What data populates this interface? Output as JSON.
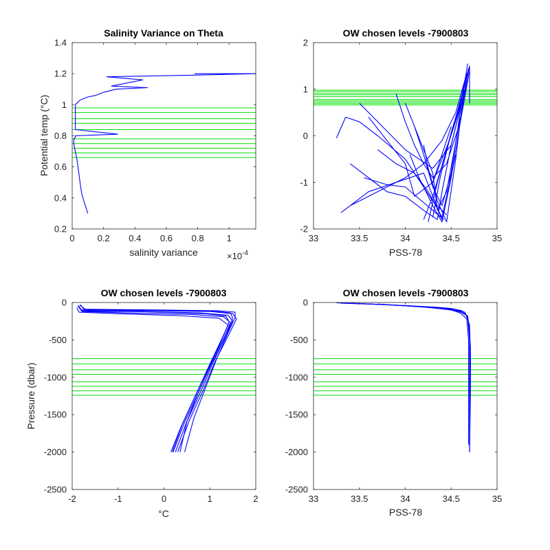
{
  "chart_data": [
    {
      "type": "line",
      "title": "Salinity Variance on Theta",
      "xlabel": "salinity variance",
      "x_exponent_label": "×10",
      "x_exponent_power": "-4",
      "ylabel": "Potential temp (°C)",
      "xlim": [
        0,
        1.17
      ],
      "ylim": [
        0.2,
        1.4
      ],
      "xticks": [
        0,
        0.2,
        0.4,
        0.6,
        0.8,
        1
      ],
      "xtick_labels": [
        "0",
        "0.2",
        "0.4",
        "0.6",
        "0.8",
        "1"
      ],
      "yticks": [
        0.2,
        0.4,
        0.6,
        0.8,
        1.0,
        1.2,
        1.4
      ],
      "ytick_labels": [
        "0.2",
        "0.4",
        "0.6",
        "0.8",
        "1",
        "1.2",
        "1.4"
      ],
      "series": [
        {
          "color": "#0000ff",
          "x": [
            0.1,
            0.08,
            0.06,
            0.05,
            0.04,
            0.03,
            0.02,
            0.01,
            0.01,
            0.02,
            0.02,
            0.29,
            0.02,
            0.02,
            0.02,
            0.02,
            0.05,
            0.1,
            0.15,
            0.2,
            0.28,
            0.48,
            0.25,
            0.45,
            0.22,
            0.75,
            1.17,
            0.78
          ],
          "y": [
            0.3,
            0.36,
            0.43,
            0.5,
            0.58,
            0.65,
            0.7,
            0.75,
            0.78,
            0.79,
            0.8,
            0.81,
            0.84,
            0.88,
            0.95,
            1.0,
            1.03,
            1.05,
            1.06,
            1.08,
            1.1,
            1.11,
            1.12,
            1.16,
            1.18,
            1.19,
            1.2,
            1.2
          ]
        }
      ],
      "reference_lines": {
        "color": "#00e000",
        "orientation": "horizontal",
        "values": [
          0.66,
          0.69,
          0.72,
          0.75,
          0.78,
          0.84,
          0.88,
          0.91,
          0.95,
          0.98
        ]
      }
    },
    {
      "type": "line",
      "title": "OW chosen levels -7900803",
      "xlabel": "PSS-78",
      "ylabel": "",
      "xlim": [
        33,
        35
      ],
      "ylim": [
        -2,
        2
      ],
      "xticks": [
        33,
        33.5,
        34,
        34.5,
        35
      ],
      "xtick_labels": [
        "33",
        "33.5",
        "34",
        "34.5",
        "35"
      ],
      "yticks": [
        -2,
        -1,
        0,
        1,
        2
      ],
      "ytick_labels": [
        "-2",
        "-1",
        "0",
        "1",
        "2"
      ],
      "series": [
        {
          "color": "#0000ff",
          "x": [
            34.35,
            34.4,
            34.5,
            34.6,
            34.65,
            34.68,
            34.7,
            34.7
          ],
          "y": [
            -1.8,
            -1.2,
            -0.2,
            0.6,
            1.0,
            1.3,
            1.5,
            0.7
          ]
        },
        {
          "color": "#0000ff",
          "x": [
            34.25,
            34.35,
            34.45,
            34.55,
            34.62,
            34.66,
            34.68
          ],
          "y": [
            -1.85,
            -1.0,
            -0.3,
            0.4,
            0.9,
            1.3,
            1.55
          ]
        },
        {
          "color": "#0000ff",
          "x": [
            34.2,
            34.3,
            34.42,
            34.52,
            34.6,
            34.65,
            34.69
          ],
          "y": [
            -1.8,
            -1.3,
            -0.5,
            0.2,
            0.7,
            1.1,
            1.45
          ]
        },
        {
          "color": "#0000ff",
          "x": [
            34.3,
            34.38,
            34.48,
            34.58,
            34.63,
            34.67
          ],
          "y": [
            -1.75,
            -0.9,
            -0.1,
            0.5,
            0.95,
            1.35
          ]
        },
        {
          "color": "#0000ff",
          "x": [
            33.4,
            33.7,
            34.0,
            34.2,
            34.4,
            34.55,
            34.65
          ],
          "y": [
            -1.5,
            -1.2,
            -0.9,
            -0.6,
            -0.1,
            0.5,
            1.2
          ]
        },
        {
          "color": "#0000ff",
          "x": [
            33.3,
            33.6,
            33.9,
            34.2,
            34.4
          ],
          "y": [
            -1.65,
            -1.2,
            -1.0,
            -0.8,
            -1.8
          ]
        },
        {
          "color": "#0000ff",
          "x": [
            33.5,
            33.7,
            34.0,
            34.3,
            34.5,
            34.6
          ],
          "y": [
            0.7,
            0.3,
            -0.3,
            -0.7,
            -0.2,
            0.6
          ]
        },
        {
          "color": "#0000ff",
          "x": [
            33.6,
            33.8,
            34.0,
            34.1,
            34.3,
            34.5
          ],
          "y": [
            0.4,
            -0.1,
            -0.6,
            -1.3,
            -1.0,
            0.2
          ]
        },
        {
          "color": "#0000ff",
          "x": [
            33.25,
            33.35,
            33.5,
            33.7,
            34.0,
            34.3,
            34.45
          ],
          "y": [
            -0.05,
            0.4,
            0.3,
            0.0,
            -0.5,
            -1.4,
            -1.7
          ]
        },
        {
          "color": "#0000ff",
          "x": [
            33.4,
            33.6,
            33.8,
            34.0,
            34.2,
            34.35
          ],
          "y": [
            -0.6,
            -0.9,
            -1.2,
            -1.3,
            -1.6,
            -1.8
          ]
        },
        {
          "color": "#0000ff",
          "x": [
            33.9,
            34.0,
            34.1,
            34.2,
            34.3,
            34.45,
            34.6,
            34.66
          ],
          "y": [
            0.9,
            0.3,
            -0.2,
            -0.6,
            -0.9,
            -0.6,
            0.3,
            1.1
          ]
        },
        {
          "color": "#0000ff",
          "x": [
            34.0,
            34.1,
            34.2,
            34.3,
            34.4,
            34.5,
            34.62
          ],
          "y": [
            0.7,
            0.2,
            -0.4,
            -1.1,
            -1.5,
            -0.8,
            0.8
          ]
        },
        {
          "color": "#0000ff",
          "x": [
            34.1,
            34.2,
            34.3,
            34.35,
            34.45,
            34.6
          ],
          "y": [
            0.2,
            -0.3,
            -0.8,
            -1.6,
            -1.2,
            0.4
          ]
        },
        {
          "color": "#0000ff",
          "x": [
            33.7,
            33.9,
            34.1,
            34.25,
            34.4,
            34.55
          ],
          "y": [
            -0.3,
            -0.6,
            -0.8,
            -1.2,
            -1.75,
            -0.4
          ]
        },
        {
          "color": "#0000ff",
          "x": [
            34.2,
            34.25,
            34.35,
            34.45,
            34.55,
            34.64
          ],
          "y": [
            -0.2,
            -0.7,
            -1.4,
            -1.85,
            -0.5,
            1.0
          ]
        },
        {
          "color": "#0000ff",
          "x": [
            34.05,
            34.15,
            34.3,
            34.4,
            34.5,
            34.6,
            34.7
          ],
          "y": [
            -0.4,
            -0.9,
            -1.5,
            -1.85,
            -0.9,
            0.3,
            1.4
          ]
        },
        {
          "color": "#0000ff",
          "x": [
            33.55,
            33.8,
            34.0,
            34.15,
            34.3,
            34.42
          ],
          "y": [
            -0.9,
            -1.05,
            -1.1,
            -1.35,
            -1.6,
            -1.8
          ]
        },
        {
          "color": "#0000ff",
          "x": [
            34.3,
            34.38,
            34.48,
            34.56,
            34.64,
            34.68
          ],
          "y": [
            -1.0,
            -0.6,
            -0.1,
            0.4,
            0.85,
            1.2
          ]
        }
      ],
      "reference_lines": {
        "color": "#00e000",
        "orientation": "horizontal",
        "values": [
          0.66,
          0.69,
          0.72,
          0.75,
          0.78,
          0.84,
          0.88,
          0.91,
          0.95,
          0.98
        ]
      }
    },
    {
      "type": "line",
      "title": "OW chosen levels -7900803",
      "xlabel": "°C",
      "ylabel": "Pressure (dbar)",
      "xlim": [
        -2,
        2
      ],
      "ylim": [
        -2500,
        0
      ],
      "xticks": [
        -2,
        -1,
        0,
        1,
        2
      ],
      "xtick_labels": [
        "-2",
        "-1",
        "0",
        "1",
        "2"
      ],
      "yticks": [
        -2500,
        -2000,
        -1500,
        -1000,
        -500,
        0
      ],
      "ytick_labels": [
        "-2500",
        "-2000",
        "-1500",
        "-1000",
        "-500",
        "0"
      ],
      "series": [
        {
          "color": "#0000ff",
          "x": [
            -1.85,
            -1.8,
            -0.5,
            0.8,
            1.4,
            1.5,
            1.35,
            1.05,
            0.75,
            0.45,
            0.2
          ],
          "y": [
            -50,
            -110,
            -120,
            -140,
            -170,
            -250,
            -450,
            -800,
            -1200,
            -1600,
            -2000
          ]
        },
        {
          "color": "#0000ff",
          "x": [
            -1.88,
            -1.8,
            -0.2,
            1.0,
            1.5,
            1.58,
            1.42,
            1.12,
            0.85,
            0.55,
            0.3
          ],
          "y": [
            -40,
            -100,
            -110,
            -120,
            -150,
            -220,
            -420,
            -780,
            -1180,
            -1580,
            -2000
          ]
        },
        {
          "color": "#0000ff",
          "x": [
            -1.82,
            -1.75,
            0.0,
            1.2,
            1.55,
            1.55,
            1.4,
            1.15,
            0.9,
            0.65,
            0.45
          ],
          "y": [
            -30,
            -90,
            -100,
            -110,
            -130,
            -200,
            -400,
            -750,
            -1150,
            -1550,
            -2000
          ]
        },
        {
          "color": "#0000ff",
          "x": [
            -1.86,
            -1.78,
            -0.8,
            0.6,
            1.3,
            1.45,
            1.3,
            1.0,
            0.7,
            0.4,
            0.18
          ],
          "y": [
            -60,
            -120,
            -140,
            -160,
            -190,
            -270,
            -480,
            -830,
            -1230,
            -1630,
            -2000
          ]
        },
        {
          "color": "#0000ff",
          "x": [
            -1.9,
            -1.85,
            -1.0,
            0.3,
            1.2,
            1.4,
            1.25,
            0.98,
            0.68,
            0.38,
            0.15
          ],
          "y": [
            -70,
            -130,
            -150,
            -175,
            -210,
            -300,
            -500,
            -850,
            -1250,
            -1650,
            -2000
          ]
        },
        {
          "color": "#0000ff",
          "x": [
            -1.84,
            -1.7,
            0.2,
            1.1,
            1.45,
            1.5,
            1.36,
            1.08,
            0.8,
            0.5,
            0.35
          ],
          "y": [
            -35,
            -95,
            -105,
            -115,
            -140,
            -210,
            -430,
            -790,
            -1190,
            -1590,
            -2000
          ]
        },
        {
          "color": "#0000ff",
          "x": [
            -1.87,
            -1.76,
            -0.4,
            0.9,
            1.35,
            1.42,
            1.28,
            1.02,
            0.74,
            0.48,
            0.25
          ],
          "y": [
            -55,
            -115,
            -125,
            -150,
            -180,
            -260,
            -470,
            -820,
            -1220,
            -1620,
            -2000
          ]
        }
      ],
      "reference_lines": {
        "color": "#00e000",
        "orientation": "horizontal",
        "values": [
          -750,
          -820,
          -900,
          -960,
          -1060,
          -1120,
          -1180,
          -1240
        ]
      }
    },
    {
      "type": "line",
      "title": "OW chosen levels -7900803",
      "xlabel": "PSS-78",
      "ylabel": "",
      "xlim": [
        33,
        35
      ],
      "ylim": [
        -2500,
        0
      ],
      "xticks": [
        33,
        33.5,
        34,
        34.5,
        35
      ],
      "xtick_labels": [
        "33",
        "33.5",
        "34",
        "34.5",
        "35"
      ],
      "yticks": [
        -2500,
        -2000,
        -1500,
        -1000,
        -500,
        0
      ],
      "ytick_labels": [
        "-2500",
        "-2000",
        "-1500",
        "-1000",
        "-500",
        "0"
      ],
      "series": [
        {
          "color": "#0000ff",
          "x": [
            33.25,
            33.6,
            34.0,
            34.3,
            34.5,
            34.62,
            34.68,
            34.7,
            34.7,
            34.7
          ],
          "y": [
            -5,
            -20,
            -40,
            -60,
            -80,
            -110,
            -200,
            -500,
            -1000,
            -2000
          ]
        },
        {
          "color": "#0000ff",
          "x": [
            33.3,
            33.7,
            34.1,
            34.35,
            34.55,
            34.65,
            34.69,
            34.71,
            34.71,
            34.7
          ],
          "y": [
            -10,
            -25,
            -50,
            -70,
            -95,
            -130,
            -250,
            -600,
            -1200,
            -2000
          ]
        },
        {
          "color": "#0000ff",
          "x": [
            33.5,
            33.9,
            34.2,
            34.4,
            34.58,
            34.66,
            34.7,
            34.71,
            34.7
          ],
          "y": [
            -15,
            -35,
            -60,
            -85,
            -110,
            -160,
            -300,
            -800,
            -2000
          ]
        },
        {
          "color": "#0000ff",
          "x": [
            33.7,
            34.0,
            34.3,
            34.5,
            34.6,
            34.67,
            34.69,
            34.69
          ],
          "y": [
            -20,
            -45,
            -70,
            -100,
            -140,
            -220,
            -500,
            -1900
          ]
        },
        {
          "color": "#0000ff",
          "x": [
            33.4,
            33.8,
            34.15,
            34.45,
            34.6,
            34.68,
            34.7,
            34.7
          ],
          "y": [
            -8,
            -30,
            -55,
            -90,
            -125,
            -180,
            -400,
            -1500
          ]
        }
      ],
      "reference_lines": {
        "color": "#00e000",
        "orientation": "horizontal",
        "values": [
          -750,
          -820,
          -900,
          -960,
          -1060,
          -1120,
          -1180,
          -1240
        ]
      }
    }
  ]
}
